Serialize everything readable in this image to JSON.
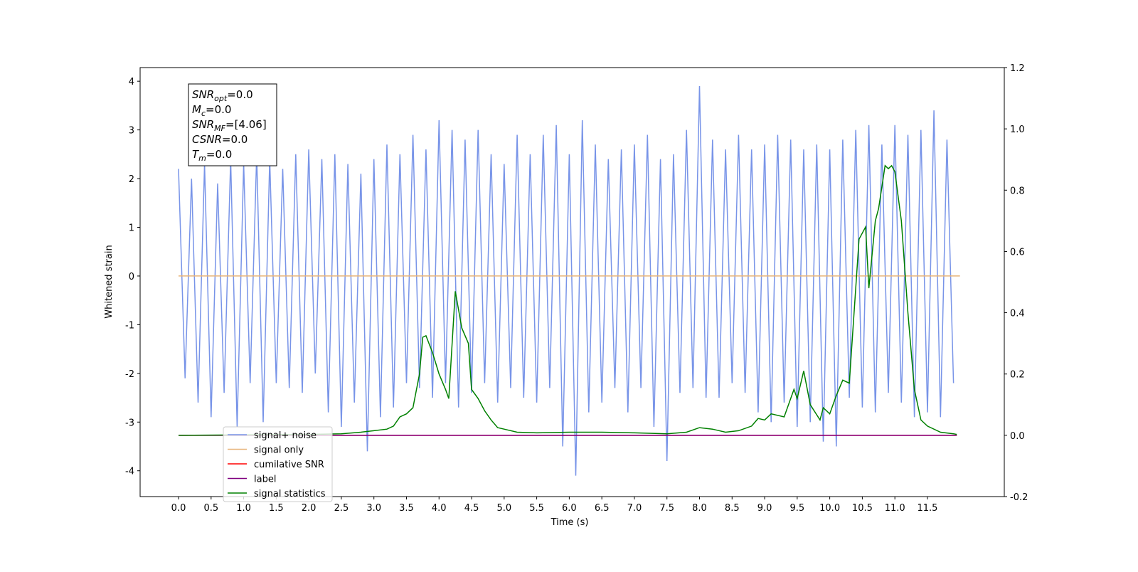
{
  "chart_data": {
    "type": "line",
    "xlabel": "Time (s)",
    "ylabel": "Whitened strain",
    "xlim": [
      -0.59,
      12.68
    ],
    "ylim": [
      -4.53,
      4.28
    ],
    "y2lim": [
      -0.2,
      1.2
    ],
    "xticks": [
      {
        "value": 0,
        "label": "0.0"
      },
      0.5,
      {
        "value": 1,
        "label": "1.0"
      },
      1.5,
      {
        "value": 2,
        "label": "2.0"
      },
      2.5,
      {
        "value": 3,
        "label": "3.0"
      },
      3.5,
      {
        "value": 4,
        "label": "4.0"
      },
      4.5,
      {
        "value": 5,
        "label": "5.0"
      },
      5.5,
      {
        "value": 6,
        "label": "6.0"
      },
      6.5,
      {
        "value": 7,
        "label": "7.0"
      },
      7.5,
      {
        "value": 8,
        "label": "8.0"
      },
      8.5,
      {
        "value": 9,
        "label": "9.0"
      },
      9.5,
      {
        "value": 10,
        "label": "10.0"
      },
      10.5,
      {
        "value": 11,
        "label": "11.0"
      },
      11.5
    ],
    "yticks": [
      -4,
      -3,
      -2,
      -1,
      0,
      1,
      2,
      3,
      4
    ],
    "y2ticks": [
      -0.2,
      {
        "value": 0,
        "label": "0.0"
      },
      0.2,
      0.4,
      0.6,
      0.8,
      {
        "value": 1,
        "label": "1.0"
      },
      1.2
    ],
    "legend": "lower left",
    "annotation": [
      {
        "main": "SNR",
        "sub": "opt",
        "rest": "=0.0"
      },
      {
        "main": "M",
        "sub": "c",
        "rest": "=0.0"
      },
      {
        "main": "SNR",
        "sub": "MF",
        "rest": "=[4.06]"
      },
      {
        "main": "CSNR",
        "rest": "=0.0"
      },
      {
        "main": "T",
        "sub": "m",
        "rest": "=0.0"
      }
    ],
    "series": [
      {
        "name": "signal+ noise",
        "color": "#7894e8",
        "x": [
          0.0,
          0.1,
          0.2,
          0.3,
          0.4,
          0.5,
          0.6,
          0.7,
          0.8,
          0.9,
          1.0,
          1.1,
          1.2,
          1.3,
          1.4,
          1.5,
          1.6,
          1.7,
          1.8,
          1.9,
          2.0,
          2.1,
          2.2,
          2.3,
          2.4,
          2.5,
          2.6,
          2.7,
          2.8,
          2.9,
          3.0,
          3.1,
          3.2,
          3.3,
          3.4,
          3.5,
          3.6,
          3.7,
          3.8,
          3.9,
          4.0,
          4.1,
          4.2,
          4.3,
          4.4,
          4.5,
          4.6,
          4.7,
          4.8,
          4.9,
          5.0,
          5.1,
          5.2,
          5.3,
          5.4,
          5.5,
          5.6,
          5.7,
          5.8,
          5.9,
          6.0,
          6.1,
          6.2,
          6.3,
          6.4,
          6.5,
          6.6,
          6.7,
          6.8,
          6.9,
          7.0,
          7.1,
          7.2,
          7.3,
          7.4,
          7.5,
          7.6,
          7.7,
          7.8,
          7.9,
          8.0,
          8.1,
          8.2,
          8.3,
          8.4,
          8.5,
          8.6,
          8.7,
          8.8,
          8.9,
          9.0,
          9.1,
          9.2,
          9.3,
          9.4,
          9.5,
          9.6,
          9.7,
          9.8,
          9.9,
          10.0,
          10.1,
          10.2,
          10.3,
          10.4,
          10.5,
          10.6,
          10.7,
          10.8,
          10.9,
          11.0,
          11.1,
          11.2,
          11.3,
          11.4,
          11.5,
          11.6,
          11.7,
          11.8,
          11.9
        ],
        "values": [
          2.2,
          -2.1,
          2.0,
          -2.6,
          2.3,
          -2.9,
          1.9,
          -2.4,
          2.4,
          -3.1,
          2.3,
          -2.2,
          2.5,
          -3.0,
          2.4,
          -2.2,
          2.2,
          -2.3,
          2.5,
          -2.4,
          2.6,
          -2.0,
          2.4,
          -2.8,
          2.5,
          -3.1,
          2.3,
          -2.6,
          2.1,
          -3.6,
          2.4,
          -2.9,
          2.7,
          -2.7,
          2.5,
          -2.2,
          2.9,
          -2.3,
          2.6,
          -2.5,
          3.2,
          -2.2,
          3.0,
          -2.7,
          2.8,
          -2.4,
          3.0,
          -2.2,
          2.5,
          -2.6,
          2.3,
          -2.3,
          2.9,
          -2.5,
          2.5,
          -2.6,
          2.9,
          -2.3,
          3.1,
          -3.5,
          2.5,
          -4.1,
          3.2,
          -2.8,
          2.7,
          -2.6,
          2.4,
          -2.3,
          2.6,
          -2.8,
          2.7,
          -2.3,
          2.9,
          -3.1,
          2.4,
          -3.8,
          2.5,
          -2.4,
          3.0,
          -2.3,
          3.9,
          -2.5,
          2.8,
          -2.5,
          2.6,
          -2.2,
          2.9,
          -2.4,
          2.6,
          -2.8,
          2.7,
          -3.0,
          2.9,
          -2.6,
          2.8,
          -3.1,
          2.6,
          -3.0,
          2.7,
          -3.4,
          2.6,
          -3.5,
          2.8,
          -2.5,
          3.0,
          -2.7,
          3.1,
          -2.8,
          2.7,
          -2.4,
          3.1,
          -2.6,
          2.9,
          -2.9,
          3.0,
          -2.8,
          3.4,
          -2.9,
          2.8,
          -2.2
        ]
      },
      {
        "name": "signal only",
        "color": "#e8b47a",
        "x": [
          0,
          12
        ],
        "values": [
          0,
          0
        ]
      },
      {
        "name": "cumilative SNR",
        "color": "#ff0000",
        "axis": "y2",
        "x": [
          0,
          11.95
        ],
        "values": [
          0,
          0
        ]
      },
      {
        "name": "label",
        "color": "#800080",
        "axis": "y2",
        "x": [
          0,
          11.95
        ],
        "values": [
          0,
          0
        ]
      },
      {
        "name": "signal statistics",
        "color": "#008000",
        "axis": "y2",
        "x": [
          0,
          2.0,
          2.5,
          2.8,
          3.0,
          3.2,
          3.3,
          3.4,
          3.5,
          3.6,
          3.7,
          3.75,
          3.8,
          3.9,
          4.0,
          4.1,
          4.15,
          4.25,
          4.35,
          4.45,
          4.5,
          4.6,
          4.7,
          4.8,
          4.9,
          5.0,
          5.2,
          5.5,
          6.0,
          6.5,
          7.0,
          7.5,
          7.8,
          8.0,
          8.2,
          8.4,
          8.6,
          8.8,
          8.9,
          9.0,
          9.1,
          9.3,
          9.45,
          9.5,
          9.6,
          9.7,
          9.85,
          9.9,
          10.0,
          10.1,
          10.2,
          10.3,
          10.45,
          10.55,
          10.6,
          10.7,
          10.75,
          10.85,
          10.9,
          10.95,
          11.0,
          11.1,
          11.2,
          11.3,
          11.4,
          11.5,
          11.7,
          11.9,
          11.95
        ],
        "values": [
          0.0,
          0.003,
          0.005,
          0.01,
          0.015,
          0.02,
          0.03,
          0.06,
          0.07,
          0.09,
          0.2,
          0.32,
          0.325,
          0.27,
          0.2,
          0.15,
          0.12,
          0.47,
          0.35,
          0.3,
          0.15,
          0.12,
          0.08,
          0.05,
          0.025,
          0.02,
          0.01,
          0.008,
          0.01,
          0.01,
          0.008,
          0.005,
          0.01,
          0.025,
          0.02,
          0.01,
          0.015,
          0.03,
          0.055,
          0.05,
          0.07,
          0.06,
          0.15,
          0.12,
          0.21,
          0.1,
          0.05,
          0.09,
          0.07,
          0.13,
          0.18,
          0.17,
          0.64,
          0.68,
          0.48,
          0.7,
          0.74,
          0.88,
          0.87,
          0.88,
          0.86,
          0.7,
          0.4,
          0.15,
          0.05,
          0.03,
          0.01,
          0.005,
          0.003
        ]
      }
    ]
  }
}
